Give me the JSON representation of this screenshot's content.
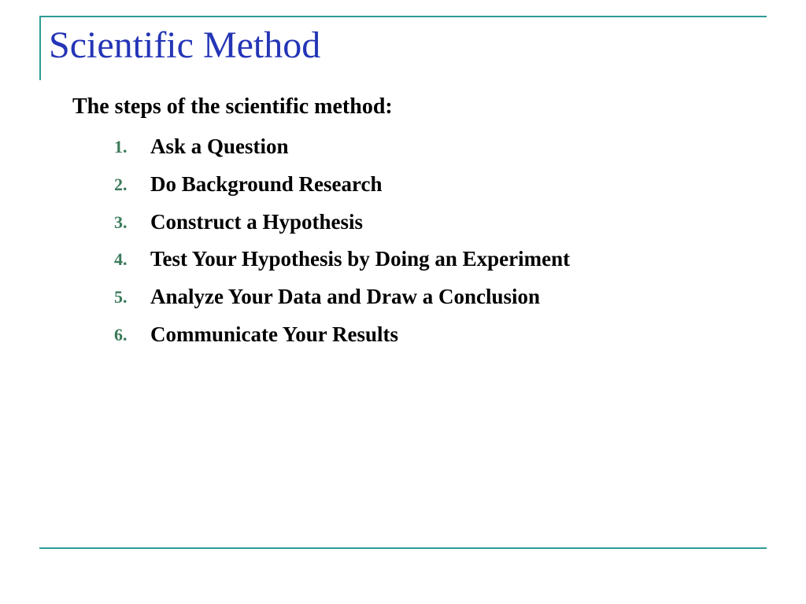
{
  "colors": {
    "border": "#2e9b95",
    "title": "#2435b6",
    "subtitle": "#000000",
    "list_number": "#3a7a5a",
    "list_text": "#000000",
    "background": "#ffffff"
  },
  "fonts": {
    "title_size": 48,
    "subtitle_size": 28,
    "list_num_size": 22,
    "list_text_size": 27
  },
  "title": "Scientific Method",
  "subtitle": "The steps of the scientific method:",
  "steps": [
    {
      "num": "1.",
      "text": "Ask a Question"
    },
    {
      "num": "2.",
      "text": "Do Background Research"
    },
    {
      "num": "3.",
      "text": "Construct a Hypothesis"
    },
    {
      "num": "4.",
      "text": "Test Your Hypothesis by Doing an Experiment"
    },
    {
      "num": "5.",
      "text": "Analyze Your Data and Draw a Conclusion"
    },
    {
      "num": "6.",
      "text": "Communicate Your Results"
    }
  ]
}
